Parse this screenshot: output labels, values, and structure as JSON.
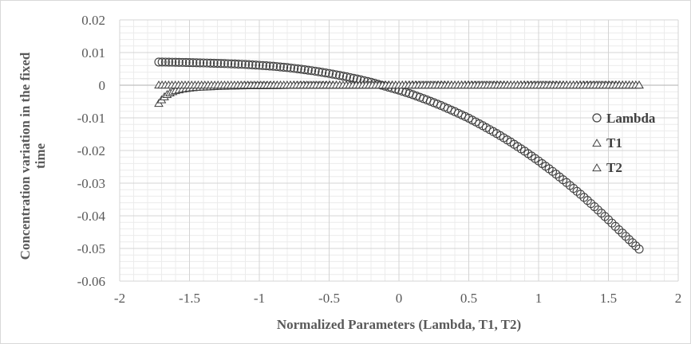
{
  "chart_data": {
    "type": "scatter",
    "title": "",
    "xlabel": "Normalized Parameters (Lambda, T1, T2)",
    "ylabel_lines": [
      "Concentration variation in the fixed",
      "time"
    ],
    "xlim": [
      -2,
      2
    ],
    "ylim": [
      -0.06,
      0.02
    ],
    "x_ticks": [
      -2,
      -1.5,
      -1,
      -0.5,
      0,
      0.5,
      1,
      1.5,
      2
    ],
    "x_tick_labels": [
      "-2",
      "-1.5",
      "-1",
      "-0.5",
      "0",
      "0.5",
      "1",
      "1.5",
      "2"
    ],
    "y_ticks": [
      0.02,
      0.01,
      0,
      -0.01,
      -0.02,
      -0.03,
      -0.04,
      -0.05,
      -0.06
    ],
    "y_tick_labels": [
      "0.02",
      "0.01",
      "0",
      "-0.01",
      "-0.02",
      "-0.03",
      "-0.04",
      "-0.05",
      "-0.06"
    ],
    "grid": "major and minor",
    "legend_position": "right",
    "series": [
      {
        "name": "Lambda",
        "marker": "circle",
        "x": [
          -1.72,
          -1.6,
          -1.5,
          -1.4,
          -1.3,
          -1.2,
          -1.1,
          -1.0,
          -0.9,
          -0.8,
          -0.7,
          -0.6,
          -0.5,
          -0.4,
          -0.3,
          -0.2,
          -0.1,
          0.0,
          0.1,
          0.2,
          0.3,
          0.4,
          0.5,
          0.6,
          0.7,
          0.8,
          0.9,
          1.0,
          1.1,
          1.2,
          1.3,
          1.4,
          1.5,
          1.6,
          1.72
        ],
        "y": [
          0.0071,
          0.00703,
          0.00693,
          0.00683,
          0.0067,
          0.00655,
          0.00635,
          0.0061,
          0.0058,
          0.0054,
          0.0049,
          0.0043,
          0.0036,
          0.0028,
          0.0019,
          0.0009,
          -0.0003,
          -0.0015,
          -0.0029,
          -0.0045,
          -0.0062,
          -0.0081,
          -0.0101,
          -0.0124,
          -0.0148,
          -0.0174,
          -0.0202,
          -0.0232,
          -0.0264,
          -0.0298,
          -0.0334,
          -0.0372,
          -0.0412,
          -0.0453,
          -0.0502
        ]
      },
      {
        "name": "T1",
        "marker": "triangle",
        "x": [
          -1.72,
          -1.7,
          -1.68,
          -1.66,
          -1.64,
          -1.62,
          -1.6,
          -1.55,
          -1.5,
          -1.45,
          -1.4,
          -1.35,
          -1.3,
          -1.2,
          -1.1,
          -1.0,
          -0.9,
          -0.8,
          -0.7,
          -0.6,
          -0.5,
          -0.4,
          -0.3,
          -0.2,
          -0.1,
          0.0,
          0.1,
          0.2,
          0.3,
          0.4,
          0.5,
          0.6,
          0.7,
          0.8,
          0.9,
          1.0,
          1.1,
          1.2,
          1.3,
          1.4,
          1.5,
          1.6,
          1.72
        ],
        "y": [
          -0.0056,
          -0.0045,
          -0.0036,
          -0.0029,
          -0.0024,
          -0.002,
          -0.0017,
          -0.0012,
          -0.0009,
          -0.0007,
          -0.0006,
          -0.0005,
          -0.0004,
          -0.0003,
          -0.0002,
          -0.0002,
          -0.00015,
          -0.0001,
          -0.0001,
          -8e-05,
          -6e-05,
          -5e-05,
          -4e-05,
          -3e-05,
          -2e-05,
          -1e-05,
          0,
          0,
          0,
          0,
          0,
          0,
          0,
          0,
          0,
          0,
          0,
          0,
          0,
          0,
          0,
          0,
          0
        ]
      },
      {
        "name": "T2",
        "marker": "triangle",
        "x": [
          -1.72,
          0,
          1.72
        ],
        "y": [
          0,
          0,
          0
        ]
      }
    ]
  }
}
